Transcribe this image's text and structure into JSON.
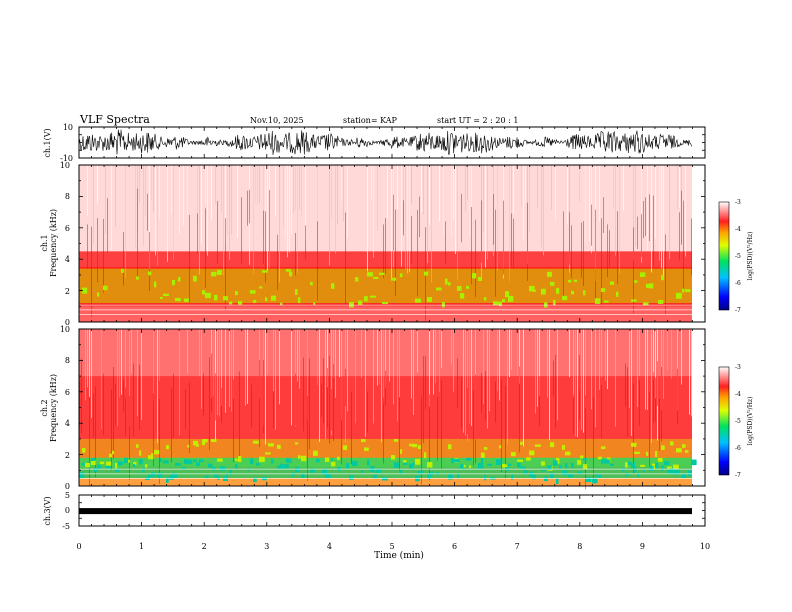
{
  "header": {
    "title": "VLF Spectra",
    "date": "Nov.10, 2025",
    "station": "station= KAP",
    "start": "start  UT  =   2 : 20 : 1"
  },
  "chart_data": [
    {
      "type": "line",
      "name": "ch1-waveform",
      "ylabel": "ch.1(V)",
      "ylim": [
        -10,
        10
      ],
      "yticks": [
        "10",
        "-10"
      ],
      "xlim": [
        0,
        10
      ],
      "data_end_min": 9.8
    },
    {
      "type": "heatmap",
      "name": "ch1-spectrogram",
      "ylabel": "ch.1\nFrequency (kHz)",
      "ylim": [
        0,
        10
      ],
      "yticks": [
        "0",
        "2",
        "4",
        "6",
        "8",
        "10"
      ],
      "colorbar": {
        "label": "log(PSD)(V²/Hz)",
        "range": [
          -7,
          -3
        ],
        "ticks": [
          "-3",
          "-4",
          "-5",
          "-6",
          "-7"
        ]
      }
    },
    {
      "type": "heatmap",
      "name": "ch2-spectrogram",
      "ylabel": "ch.2\nFrequency (kHz)",
      "ylim": [
        0,
        10
      ],
      "yticks": [
        "0",
        "2",
        "4",
        "6",
        "8",
        "10"
      ],
      "colorbar": {
        "label": "log(PSD)(V²/Hz)",
        "range": [
          -7,
          -3
        ],
        "ticks": [
          "-3",
          "-4",
          "-5",
          "-6",
          "-7"
        ]
      }
    },
    {
      "type": "line",
      "name": "ch3-waveform",
      "ylabel": "ch.3(V)",
      "ylim": [
        -5,
        5
      ],
      "yticks": [
        "5",
        "0",
        "-5"
      ],
      "level": -0.2
    }
  ],
  "xaxis": {
    "label": "Time (min)",
    "ticks": [
      "0",
      "1",
      "2",
      "3",
      "4",
      "5",
      "6",
      "7",
      "8",
      "9",
      "10"
    ]
  },
  "labels": {
    "ch1": "ch.1(V)",
    "ch1_spec": "ch.1",
    "freq": "Frequency (kHz)",
    "ch2_spec": "ch.2",
    "ch3": "ch.3(V)",
    "cbar": "log(PSD)(V²/Hz)"
  },
  "colors": {
    "low": "#0000ff",
    "mid": "#00dd55",
    "high": "#ff2020",
    "top": "#ffffff"
  }
}
